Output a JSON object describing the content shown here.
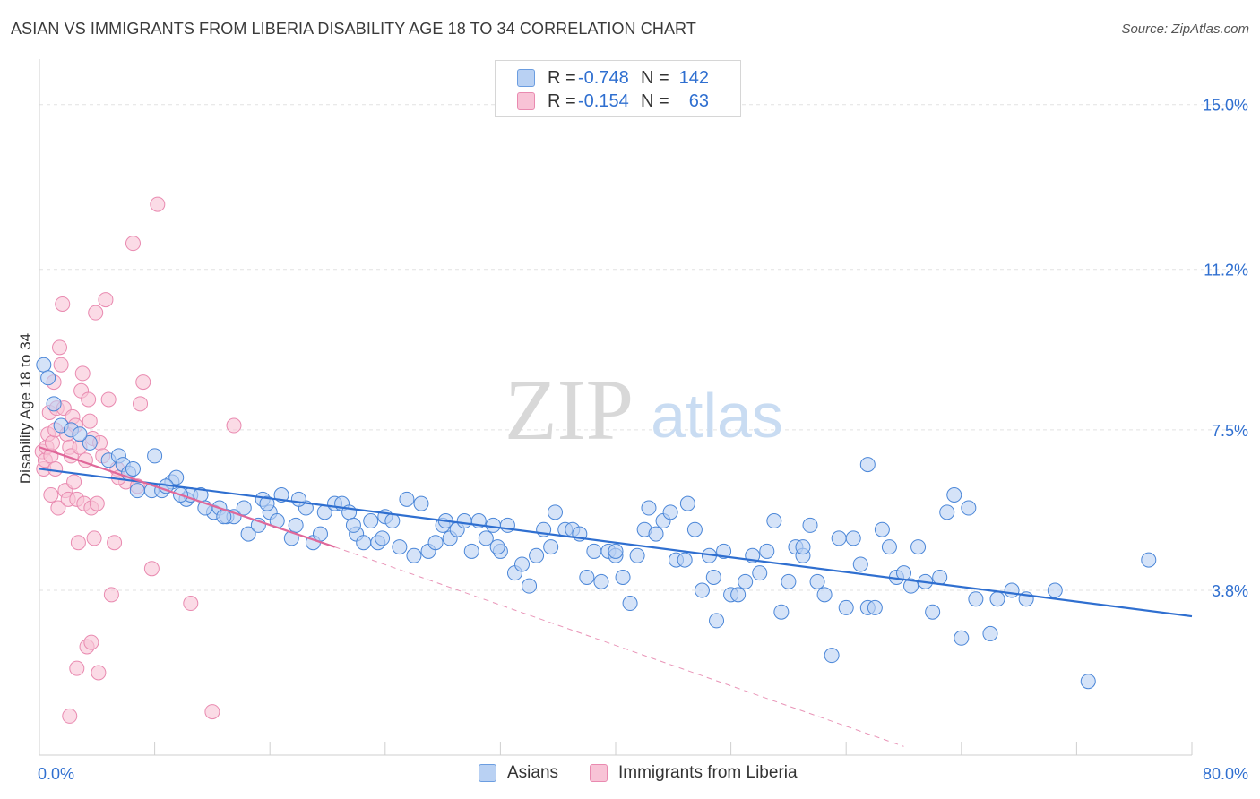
{
  "title": "ASIAN VS IMMIGRANTS FROM LIBERIA DISABILITY AGE 18 TO 34 CORRELATION CHART",
  "source": "Source: ZipAtlas.com",
  "watermark": {
    "zip": "ZIP",
    "atlas": "atlas"
  },
  "legend": {
    "rows": [
      {
        "r_label": "R =",
        "r_value": "-0.748",
        "n_label": "N =",
        "n_value": "142",
        "color": "#6b9de0",
        "fill": "#b9d1f3"
      },
      {
        "r_label": "R =",
        "r_value": "-0.154",
        "n_label": "N =",
        "n_value": "63",
        "color": "#e98ab0",
        "fill": "#f8c3d6"
      }
    ]
  },
  "bottom_legend": [
    {
      "label": "Asians",
      "fill": "#b9d1f3",
      "color": "#6b9de0"
    },
    {
      "label": "Immigrants from Liberia",
      "fill": "#f8c3d6",
      "color": "#e98ab0"
    }
  ],
  "chart_data": {
    "type": "scatter",
    "ylabel": "Disability Age 18 to 34",
    "xlim": [
      0,
      80
    ],
    "ylim": [
      0,
      15.8
    ],
    "x_tick_labels": [
      "0.0%",
      "80.0%"
    ],
    "y_ticks": [
      3.8,
      7.5,
      11.2,
      15.0
    ],
    "y_tick_labels": [
      "3.8%",
      "7.5%",
      "11.2%",
      "15.0%"
    ],
    "grid": true,
    "series": [
      {
        "name": "Asians",
        "color": "#4a86d8",
        "fill": "#b9d1f3",
        "trendline": {
          "x": [
            0,
            80
          ],
          "y": [
            6.6,
            3.2
          ],
          "color": "#2f6fd0"
        },
        "points": [
          [
            0.3,
            9.0
          ],
          [
            0.6,
            8.7
          ],
          [
            1.0,
            8.1
          ],
          [
            1.5,
            7.6
          ],
          [
            2.2,
            7.5
          ],
          [
            3.5,
            7.2
          ],
          [
            4.8,
            6.8
          ],
          [
            5.5,
            6.9
          ],
          [
            5.8,
            6.7
          ],
          [
            6.2,
            6.5
          ],
          [
            6.8,
            6.1
          ],
          [
            7.8,
            6.1
          ],
          [
            8.0,
            6.9
          ],
          [
            8.5,
            6.1
          ],
          [
            9.2,
            6.3
          ],
          [
            9.5,
            6.4
          ],
          [
            10.2,
            5.9
          ],
          [
            10.5,
            6.0
          ],
          [
            11.2,
            6.0
          ],
          [
            12.1,
            5.6
          ],
          [
            12.5,
            5.7
          ],
          [
            13.0,
            5.5
          ],
          [
            13.5,
            5.5
          ],
          [
            14.2,
            5.7
          ],
          [
            14.5,
            5.1
          ],
          [
            15.2,
            5.3
          ],
          [
            15.5,
            5.9
          ],
          [
            16.0,
            5.6
          ],
          [
            16.5,
            5.4
          ],
          [
            16.8,
            6.0
          ],
          [
            17.5,
            5.0
          ],
          [
            17.8,
            5.3
          ],
          [
            18.5,
            5.7
          ],
          [
            19.0,
            4.9
          ],
          [
            19.5,
            5.1
          ],
          [
            19.8,
            5.6
          ],
          [
            20.5,
            5.8
          ],
          [
            21.0,
            5.8
          ],
          [
            21.5,
            5.6
          ],
          [
            22.0,
            5.1
          ],
          [
            22.5,
            4.9
          ],
          [
            23.0,
            5.4
          ],
          [
            23.5,
            4.9
          ],
          [
            24.0,
            5.5
          ],
          [
            24.5,
            5.4
          ],
          [
            25.0,
            4.8
          ],
          [
            25.5,
            5.9
          ],
          [
            26.0,
            4.6
          ],
          [
            26.5,
            5.8
          ],
          [
            27.0,
            4.7
          ],
          [
            27.5,
            4.9
          ],
          [
            28.0,
            5.3
          ],
          [
            28.5,
            5.0
          ],
          [
            29.0,
            5.2
          ],
          [
            29.5,
            5.4
          ],
          [
            30.0,
            4.7
          ],
          [
            30.5,
            5.4
          ],
          [
            31.0,
            5.0
          ],
          [
            31.5,
            5.3
          ],
          [
            32.0,
            4.7
          ],
          [
            32.5,
            5.3
          ],
          [
            33.0,
            4.2
          ],
          [
            33.5,
            4.4
          ],
          [
            34.0,
            3.9
          ],
          [
            34.5,
            4.6
          ],
          [
            35.0,
            5.2
          ],
          [
            35.5,
            4.8
          ],
          [
            35.8,
            5.6
          ],
          [
            36.5,
            5.2
          ],
          [
            37.0,
            5.2
          ],
          [
            37.5,
            5.1
          ],
          [
            38.0,
            4.1
          ],
          [
            38.5,
            4.7
          ],
          [
            39.0,
            4.0
          ],
          [
            39.5,
            4.7
          ],
          [
            40.0,
            4.6
          ],
          [
            40.5,
            4.1
          ],
          [
            41.0,
            3.5
          ],
          [
            41.5,
            4.6
          ],
          [
            42.0,
            5.2
          ],
          [
            42.3,
            5.7
          ],
          [
            42.8,
            5.1
          ],
          [
            43.3,
            5.4
          ],
          [
            43.8,
            5.6
          ],
          [
            44.2,
            4.5
          ],
          [
            44.8,
            4.5
          ],
          [
            45.0,
            5.8
          ],
          [
            45.5,
            5.2
          ],
          [
            46.0,
            3.8
          ],
          [
            46.5,
            4.6
          ],
          [
            46.8,
            4.1
          ],
          [
            47.0,
            3.1
          ],
          [
            47.5,
            4.7
          ],
          [
            48.0,
            3.7
          ],
          [
            48.5,
            3.7
          ],
          [
            49.0,
            4.0
          ],
          [
            49.5,
            4.6
          ],
          [
            50.0,
            4.2
          ],
          [
            50.5,
            4.7
          ],
          [
            51.0,
            5.4
          ],
          [
            51.5,
            3.3
          ],
          [
            52.0,
            4.0
          ],
          [
            52.5,
            4.8
          ],
          [
            53.0,
            4.6
          ],
          [
            53.5,
            5.3
          ],
          [
            54.0,
            4.0
          ],
          [
            54.5,
            3.7
          ],
          [
            55.0,
            2.3
          ],
          [
            55.5,
            5.0
          ],
          [
            56.0,
            3.4
          ],
          [
            56.5,
            5.0
          ],
          [
            57.0,
            4.4
          ],
          [
            57.5,
            3.4
          ],
          [
            58.0,
            3.4
          ],
          [
            58.5,
            5.2
          ],
          [
            59.0,
            4.8
          ],
          [
            59.5,
            4.1
          ],
          [
            60.0,
            4.2
          ],
          [
            60.5,
            3.9
          ],
          [
            61.0,
            4.8
          ],
          [
            61.5,
            4.0
          ],
          [
            62.0,
            3.3
          ],
          [
            62.5,
            4.1
          ],
          [
            63.0,
            5.6
          ],
          [
            63.5,
            6.0
          ],
          [
            64.0,
            2.7
          ],
          [
            64.5,
            5.7
          ],
          [
            65.0,
            3.6
          ],
          [
            66.0,
            2.8
          ],
          [
            66.5,
            3.6
          ],
          [
            67.5,
            3.8
          ],
          [
            68.5,
            3.6
          ],
          [
            70.5,
            3.8
          ],
          [
            72.8,
            1.7
          ],
          [
            77.0,
            4.5
          ],
          [
            57.5,
            6.7
          ],
          [
            53.0,
            4.8
          ],
          [
            40.0,
            4.7
          ],
          [
            31.8,
            4.8
          ],
          [
            28.2,
            5.4
          ],
          [
            23.8,
            5.0
          ],
          [
            21.8,
            5.3
          ],
          [
            18.0,
            5.9
          ],
          [
            15.8,
            5.8
          ],
          [
            12.8,
            5.5
          ],
          [
            11.5,
            5.7
          ],
          [
            9.8,
            6.0
          ],
          [
            8.8,
            6.2
          ],
          [
            6.5,
            6.6
          ],
          [
            2.8,
            7.4
          ]
        ]
      },
      {
        "name": "Immigrants from Liberia",
        "color": "#e98ab0",
        "fill": "#f8c3d6",
        "trendline": {
          "x": [
            0,
            20.5
          ],
          "y": [
            7.1,
            4.8
          ],
          "dashed_to": [
            60,
            0.2
          ],
          "color": "#e0689a"
        },
        "points": [
          [
            0.2,
            7.0
          ],
          [
            0.3,
            6.6
          ],
          [
            0.4,
            6.8
          ],
          [
            0.5,
            7.1
          ],
          [
            0.6,
            7.4
          ],
          [
            0.7,
            7.9
          ],
          [
            0.8,
            6.9
          ],
          [
            0.9,
            7.2
          ],
          [
            1.0,
            8.6
          ],
          [
            1.1,
            7.5
          ],
          [
            1.2,
            8.0
          ],
          [
            1.3,
            5.7
          ],
          [
            1.4,
            9.4
          ],
          [
            1.5,
            9.0
          ],
          [
            1.6,
            10.4
          ],
          [
            1.7,
            8.0
          ],
          [
            1.8,
            6.1
          ],
          [
            1.9,
            7.4
          ],
          [
            2.0,
            5.9
          ],
          [
            2.1,
            7.1
          ],
          [
            2.2,
            6.9
          ],
          [
            2.3,
            7.8
          ],
          [
            2.4,
            6.3
          ],
          [
            2.5,
            7.6
          ],
          [
            2.6,
            5.9
          ],
          [
            2.7,
            4.9
          ],
          [
            2.8,
            7.1
          ],
          [
            2.9,
            8.4
          ],
          [
            3.0,
            8.8
          ],
          [
            3.1,
            5.8
          ],
          [
            3.2,
            6.8
          ],
          [
            3.3,
            2.5
          ],
          [
            3.4,
            8.2
          ],
          [
            3.5,
            7.7
          ],
          [
            3.6,
            5.7
          ],
          [
            3.7,
            7.3
          ],
          [
            3.8,
            5.0
          ],
          [
            3.9,
            10.2
          ],
          [
            4.0,
            5.8
          ],
          [
            4.2,
            7.2
          ],
          [
            4.4,
            6.9
          ],
          [
            4.6,
            10.5
          ],
          [
            4.8,
            8.2
          ],
          [
            5.0,
            3.7
          ],
          [
            5.2,
            4.9
          ],
          [
            5.4,
            6.6
          ],
          [
            6.0,
            6.3
          ],
          [
            6.5,
            11.8
          ],
          [
            7.0,
            8.1
          ],
          [
            7.2,
            8.6
          ],
          [
            7.8,
            4.3
          ],
          [
            8.2,
            12.7
          ],
          [
            10.5,
            3.5
          ],
          [
            12.0,
            1.0
          ],
          [
            13.5,
            7.6
          ],
          [
            5.5,
            6.4
          ],
          [
            6.8,
            6.2
          ],
          [
            2.6,
            2.0
          ],
          [
            3.6,
            2.6
          ],
          [
            4.1,
            1.9
          ],
          [
            2.1,
            0.9
          ],
          [
            1.1,
            6.6
          ],
          [
            0.8,
            6.0
          ]
        ]
      }
    ]
  }
}
